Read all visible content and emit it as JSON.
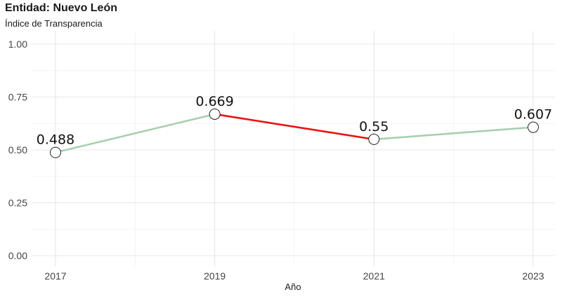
{
  "chart_data": {
    "type": "line",
    "title": "Entidad: Nuevo León",
    "subtitle": "Índice de Transparencia",
    "xlabel": "Año",
    "ylabel": "",
    "x": [
      2017,
      2019,
      2021,
      2023
    ],
    "x_tick_labels": [
      "2017",
      "2019",
      "2021",
      "2023"
    ],
    "y": [
      0.488,
      0.669,
      0.55,
      0.607
    ],
    "data_labels": [
      "0.488",
      "0.669",
      "0.55",
      "0.607"
    ],
    "y_tick_labels": [
      "0.00",
      "0.25",
      "0.50",
      "0.75",
      "1.00"
    ],
    "y_ticks": [
      0,
      0.25,
      0.5,
      0.75,
      1.0
    ],
    "ylim": [
      0,
      1.0
    ],
    "xlim": [
      2017,
      2023
    ],
    "grid": true,
    "legend": "none",
    "colors": {
      "increase": "#a8cfb0",
      "decrease": "#ee1111",
      "marker_fill": "#ffffff",
      "marker_stroke": "#222222",
      "grid": "#e8e8e8"
    }
  }
}
